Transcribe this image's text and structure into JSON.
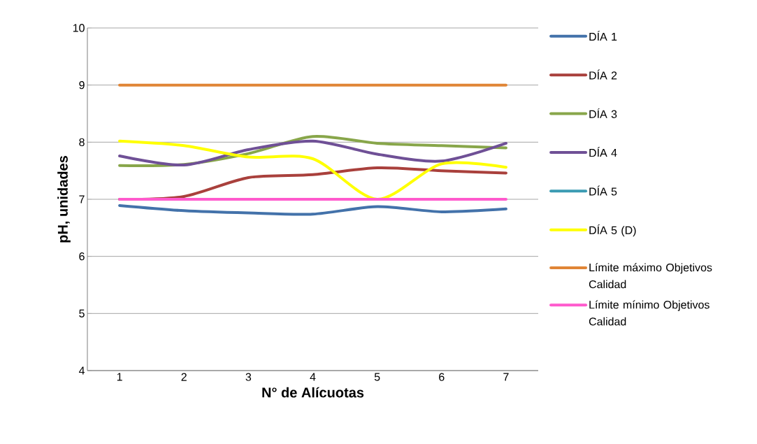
{
  "chart_data": {
    "type": "line",
    "xlabel": "N° de Alícuotas",
    "ylabel": "pH, unidades",
    "categories": [
      "1",
      "2",
      "3",
      "4",
      "5",
      "6",
      "7"
    ],
    "ylim": [
      4,
      10
    ],
    "yticks": [
      4,
      5,
      6,
      7,
      8,
      9,
      10
    ],
    "grid": "y",
    "legend": "right",
    "marker": "none",
    "line_style": "solid",
    "series": [
      {
        "name": "DÍA 1",
        "color": "#4372aa",
        "values": [
          6.89,
          6.8,
          6.76,
          6.74,
          6.87,
          6.78,
          6.83
        ]
      },
      {
        "name": "DÍA 2",
        "color": "#a9403c",
        "values": [
          7.0,
          7.05,
          7.38,
          7.43,
          7.55,
          7.5,
          7.46
        ]
      },
      {
        "name": "DÍA 3",
        "color": "#88a64a",
        "values": [
          7.59,
          7.61,
          7.8,
          8.1,
          7.98,
          7.94,
          7.9
        ]
      },
      {
        "name": "DÍA 4",
        "color": "#6f5096",
        "values": [
          7.76,
          7.6,
          7.87,
          8.02,
          7.79,
          7.67,
          7.98
        ]
      },
      {
        "name": "DÍA 5",
        "color": "#3b9bb3",
        "values": [
          null,
          null,
          null,
          null,
          null,
          null,
          null
        ]
      },
      {
        "name": "DÍA 5 (D)",
        "color": "#ffff00",
        "values": [
          8.02,
          7.94,
          7.74,
          7.71,
          7.0,
          7.62,
          7.56
        ]
      },
      {
        "name": "Límite máximo Objetivos Calidad",
        "color": "#e08536",
        "values": [
          9,
          9,
          9,
          9,
          9,
          9,
          9
        ]
      },
      {
        "name": "Límite mínimo  Objetivos Calidad",
        "color": "#ff5acd",
        "values": [
          7,
          7,
          7,
          7,
          7,
          7,
          7
        ]
      }
    ]
  }
}
